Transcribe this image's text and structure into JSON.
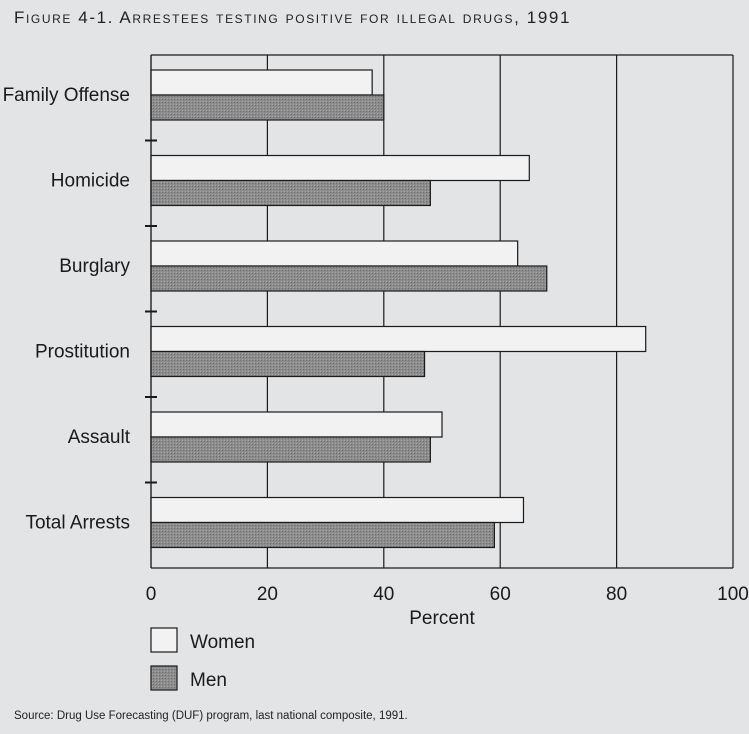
{
  "title": "Figure 4-1. Arrestees testing positive for illegal drugs, 1991",
  "source": "Source: Drug Use Forecasting (DUF) program, last national composite, 1991.",
  "colors": {
    "women": "#f2f2f2",
    "men": "#8c8c8c",
    "background": "#e3e4e6",
    "ink": "#1a1a1a"
  },
  "chart_data": {
    "type": "bar",
    "orientation": "horizontal",
    "categories": [
      "Family Offense",
      "Homicide",
      "Burglary",
      "Prostitution",
      "Assault",
      "Total Arrests"
    ],
    "series": [
      {
        "name": "Women",
        "values": [
          38,
          65,
          63,
          85,
          50,
          64
        ]
      },
      {
        "name": "Men",
        "values": [
          40,
          48,
          68,
          47,
          48,
          59
        ]
      }
    ],
    "xlabel": "Percent",
    "xlim": [
      0,
      100
    ],
    "xticks": [
      0,
      20,
      40,
      60,
      80,
      100
    ],
    "grid": true,
    "legend_position": "bottom-left"
  }
}
